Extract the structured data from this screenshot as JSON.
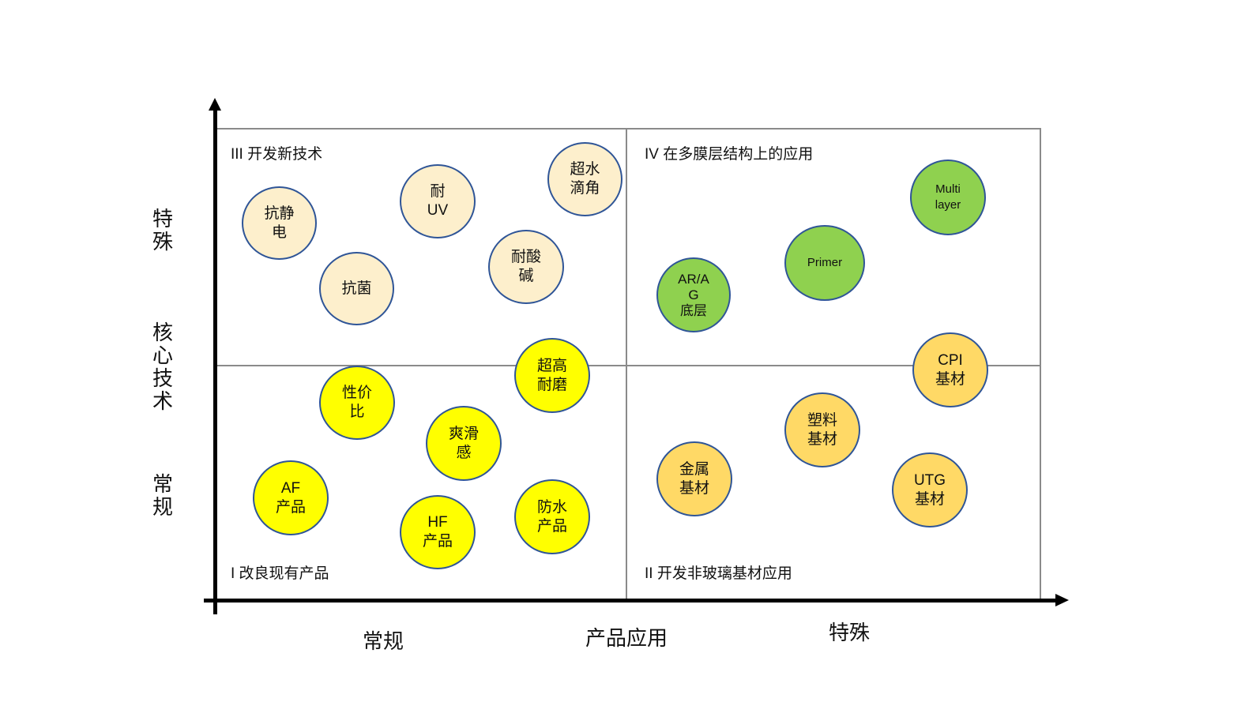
{
  "axes": {
    "y_labels": {
      "top": "特\n殊",
      "middle": "核\n心\n技\n术",
      "bottom": "常\n规"
    },
    "x_labels": {
      "left": "常规",
      "middle": "产品应用",
      "right": "特殊"
    }
  },
  "quadrants": {
    "q3": "III 开发新技术",
    "q4": "IV 在多膜层结构上的应用",
    "q1": "I 改良现有产品",
    "q2": "II 开发非玻璃基材应用"
  },
  "colors": {
    "cream": "#fdefcc",
    "yellow": "#ffff00",
    "green": "#8fd14f",
    "orange": "#ffd966",
    "bubble_border": "#2f5597",
    "axis": "#000000",
    "grid": "#8a8a8a"
  },
  "bubbles": {
    "antistatic": "抗静\n电",
    "antibacterial": "抗菌",
    "uv_resistant": "耐\nUV",
    "super_hydrophobic": "超水\n滴角",
    "acid_alkali": "耐酸\n碱",
    "cost_performance": "性价\n比",
    "high_wear": "超高\n耐磨",
    "smooth_feel": "爽滑\n感",
    "af_product": "AF\n产品",
    "hf_product": "HF\n产品",
    "waterproof_product": "防水\n产品",
    "arag_base": "AR/A\nG\n底层",
    "primer": "Primer",
    "multilayer": "Multi\nlayer",
    "cpi_substrate": "CPI\n基材",
    "plastic_substrate": "塑料\n基材",
    "metal_substrate": "金属\n基材",
    "utg_substrate": "UTG\n基材"
  }
}
